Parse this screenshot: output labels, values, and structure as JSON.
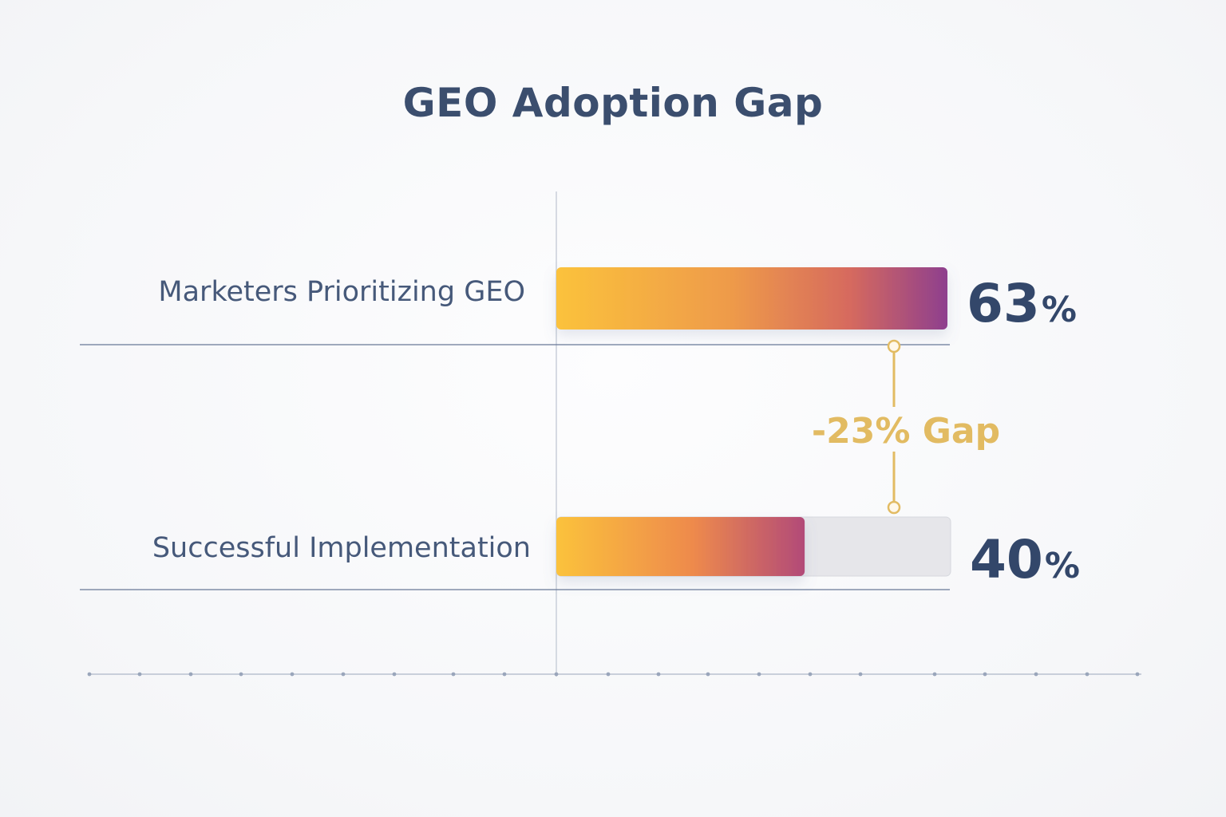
{
  "chart_data": {
    "type": "bar",
    "orientation": "horizontal",
    "title": "GEO Adoption Gap",
    "categories": [
      "Marketers Prioritizing GEO",
      "Successful Implementation"
    ],
    "values": [
      63,
      40
    ],
    "value_labels": [
      "63",
      "40"
    ],
    "unit": "%",
    "xlim": [
      0,
      63
    ],
    "grid": false,
    "legend": "none",
    "annotation": {
      "text": "-23% Gap",
      "difference": -23
    },
    "colors": {
      "bar_start": "#fbc23c",
      "bar_mid": "#e47e4e",
      "bar_end": "#8e3f8e",
      "track": "#e6e6ea",
      "annotation": "#e2bb62",
      "text": "#33476a"
    }
  }
}
